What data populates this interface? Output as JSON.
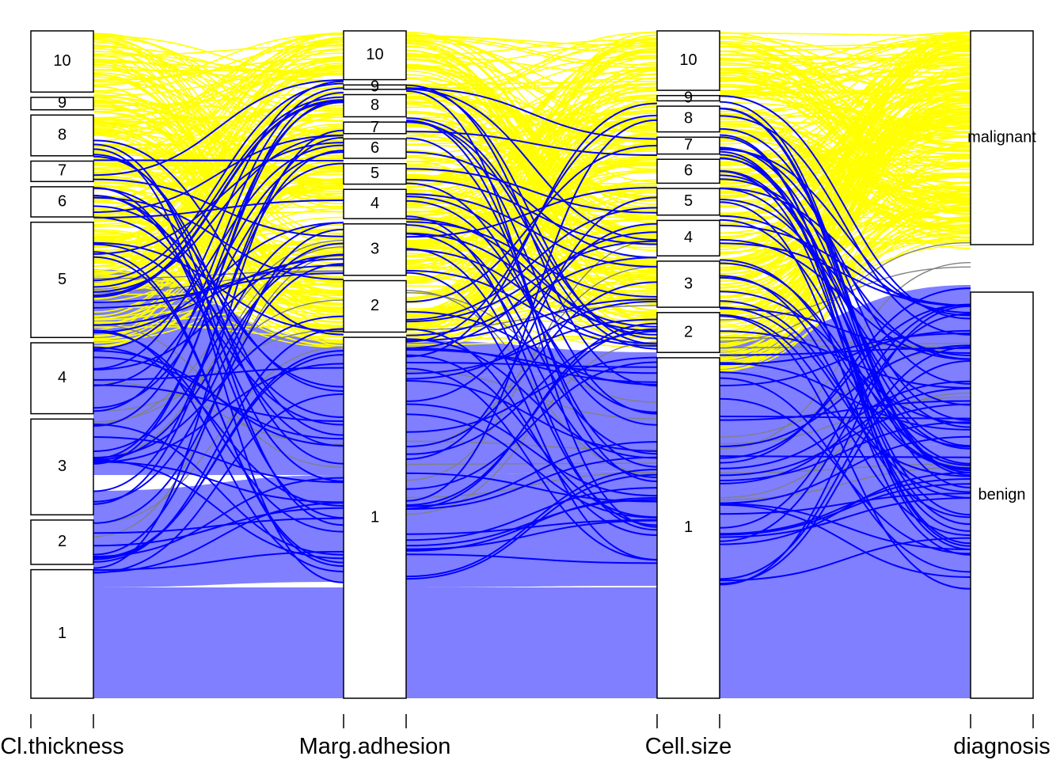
{
  "chart_data": {
    "type": "alluvial",
    "title": "",
    "axes": [
      {
        "name": "Cl.thickness",
        "strata": [
          {
            "label": "10",
            "count": 69
          },
          {
            "label": "9",
            "count": 14
          },
          {
            "label": "8",
            "count": 46
          },
          {
            "label": "7",
            "count": 23
          },
          {
            "label": "6",
            "count": 34
          },
          {
            "label": "5",
            "count": 130
          },
          {
            "label": "4",
            "count": 80
          },
          {
            "label": "3",
            "count": 108
          },
          {
            "label": "2",
            "count": 50
          },
          {
            "label": "1",
            "count": 145
          }
        ]
      },
      {
        "name": "Marg.adhesion",
        "strata": [
          {
            "label": "10",
            "count": 55
          },
          {
            "label": "9",
            "count": 5
          },
          {
            "label": "8",
            "count": 25
          },
          {
            "label": "7",
            "count": 13
          },
          {
            "label": "6",
            "count": 22
          },
          {
            "label": "5",
            "count": 23
          },
          {
            "label": "4",
            "count": 33
          },
          {
            "label": "3",
            "count": 58
          },
          {
            "label": "2",
            "count": 58
          },
          {
            "label": "1",
            "count": 407
          }
        ]
      },
      {
        "name": "Cell.size",
        "strata": [
          {
            "label": "10",
            "count": 67
          },
          {
            "label": "9",
            "count": 6
          },
          {
            "label": "8",
            "count": 29
          },
          {
            "label": "7",
            "count": 19
          },
          {
            "label": "6",
            "count": 27
          },
          {
            "label": "5",
            "count": 30
          },
          {
            "label": "4",
            "count": 40
          },
          {
            "label": "3",
            "count": 52
          },
          {
            "label": "2",
            "count": 45
          },
          {
            "label": "1",
            "count": 384
          }
        ]
      },
      {
        "name": "diagnosis",
        "strata": [
          {
            "label": "malignant",
            "count": 241
          },
          {
            "label": "benign",
            "count": 458
          }
        ]
      }
    ],
    "colors": {
      "malignant": "#ffff00",
      "benign_fill": "#7f7fff",
      "benign_line": "#0000ff",
      "other_line": "#808080"
    }
  }
}
